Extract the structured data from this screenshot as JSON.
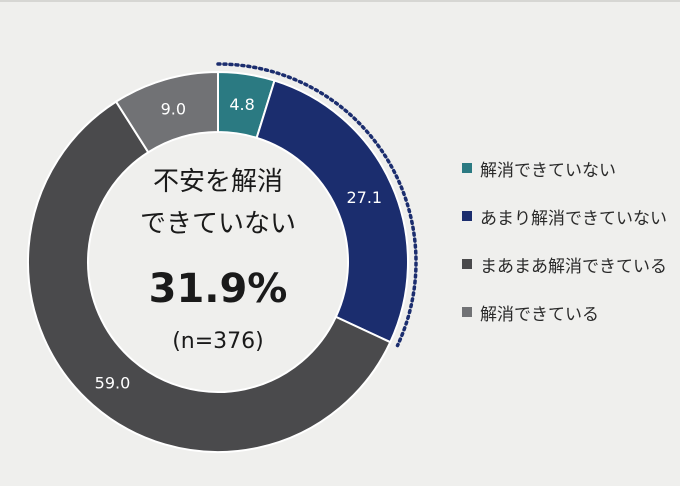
{
  "chart_data": {
    "type": "pie",
    "categories": [
      "解消できていない",
      "あまり解消できていない",
      "まあまあ解消できている",
      "解消できている"
    ],
    "values": [
      4.8,
      27.1,
      59.0,
      9.0
    ],
    "value_labels": [
      "4.8",
      "27.1",
      "59.0",
      "9.0"
    ],
    "colors": [
      "#2b7a82",
      "#1b2d6e",
      "#4a4a4c",
      "#717275"
    ],
    "legend_placement": "right",
    "center": {
      "line1": "不安を解消",
      "line2": "できていない",
      "value": "31.9%",
      "n": "(n=376)"
    }
  }
}
